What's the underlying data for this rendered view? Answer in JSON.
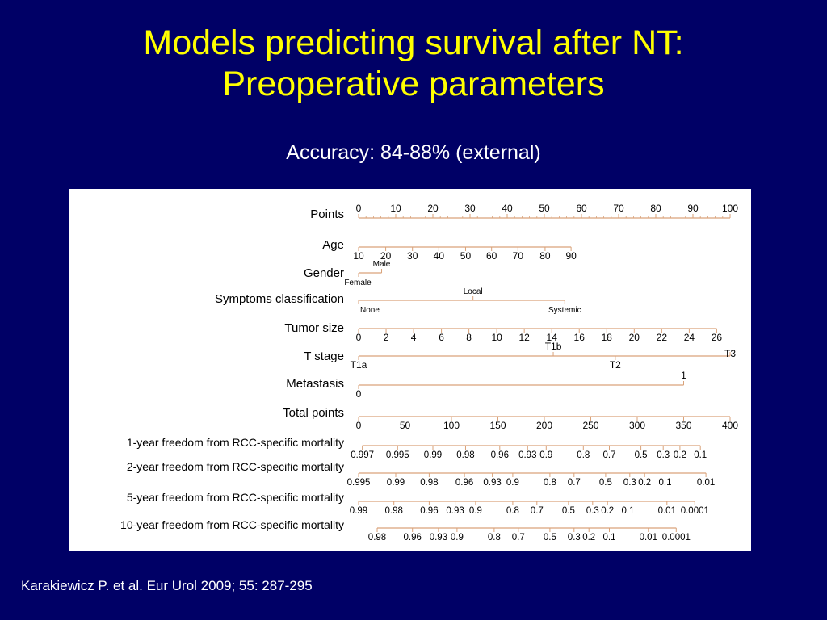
{
  "slide": {
    "title_line1": "Models predicting survival after NT:",
    "title_line2": "Preoperative parameters",
    "subtitle": "Accuracy: 84-88% (external)",
    "citation": "Karakiewicz P. et al. Eur Urol 2009; 55: 287-295"
  },
  "colors": {
    "background": "#000066",
    "title": "#ffff00",
    "text": "#ffffff",
    "panel": "#ffffff",
    "scale_line": "#d9a27a",
    "label": "#000000"
  },
  "nomogram": {
    "rows": [
      {
        "label": "Points",
        "ticks": [
          {
            "t": "0",
            "p": 0
          },
          {
            "t": "10",
            "p": 10
          },
          {
            "t": "20",
            "p": 20
          },
          {
            "t": "30",
            "p": 30
          },
          {
            "t": "40",
            "p": 40
          },
          {
            "t": "50",
            "p": 50
          },
          {
            "t": "60",
            "p": 60
          },
          {
            "t": "70",
            "p": 70
          },
          {
            "t": "80",
            "p": 80
          },
          {
            "t": "90",
            "p": 90
          },
          {
            "t": "100",
            "p": 100
          }
        ]
      },
      {
        "label": "Age",
        "ticks": [
          {
            "t": "10",
            "p": 0
          },
          {
            "t": "20",
            "p": 7.3
          },
          {
            "t": "30",
            "p": 14.5
          },
          {
            "t": "40",
            "p": 21.6
          },
          {
            "t": "50",
            "p": 28.8
          },
          {
            "t": "60",
            "p": 35.8
          },
          {
            "t": "70",
            "p": 42.9
          },
          {
            "t": "80",
            "p": 50.2
          },
          {
            "t": "90",
            "p": 57.2
          }
        ]
      },
      {
        "label": "Gender",
        "ticks": [
          {
            "t": "Female",
            "p": 0
          },
          {
            "t": "Male",
            "p": 6.2
          }
        ]
      },
      {
        "label": "Symptoms classification",
        "ticks": [
          {
            "t": "None",
            "p": 0
          },
          {
            "t": "Local",
            "p": 30.8
          },
          {
            "t": "Systemic",
            "p": 55.5
          }
        ]
      },
      {
        "label": "Tumor   size",
        "ticks": [
          {
            "t": "0",
            "p": 0
          },
          {
            "t": "2",
            "p": 7.4
          },
          {
            "t": "4",
            "p": 14.8
          },
          {
            "t": "6",
            "p": 22.3
          },
          {
            "t": "8",
            "p": 29.7
          },
          {
            "t": "10",
            "p": 37.2
          },
          {
            "t": "12",
            "p": 44.6
          },
          {
            "t": "14",
            "p": 52.0
          },
          {
            "t": "16",
            "p": 59.4
          },
          {
            "t": "18",
            "p": 66.8
          },
          {
            "t": "20",
            "p": 74.2
          },
          {
            "t": "22",
            "p": 81.6
          },
          {
            "t": "24",
            "p": 89.0
          },
          {
            "t": "26",
            "p": 96.4
          }
        ]
      },
      {
        "label": "T stage",
        "ticks": [
          {
            "t": "T1a",
            "p": 0
          },
          {
            "t": "T1b",
            "p": 52.4
          },
          {
            "t": "T2",
            "p": 69.1
          },
          {
            "t": "T3",
            "p": 100
          }
        ]
      },
      {
        "label": "Metastasis",
        "ticks": [
          {
            "t": "0",
            "p": 0
          },
          {
            "t": "1",
            "p": 87.5
          }
        ]
      },
      {
        "label": "Total points",
        "ticks": [
          {
            "t": "0",
            "p": 0
          },
          {
            "t": "50",
            "p": 12.5
          },
          {
            "t": "100",
            "p": 25
          },
          {
            "t": "150",
            "p": 37.5
          },
          {
            "t": "200",
            "p": 50
          },
          {
            "t": "250",
            "p": 62.5
          },
          {
            "t": "300",
            "p": 75
          },
          {
            "t": "350",
            "p": 87.5
          },
          {
            "t": "400",
            "p": 100
          }
        ]
      },
      {
        "label": "1-year freedom from RCC-specific mortality",
        "ticks": [
          {
            "t": "0.997",
            "p": 1
          },
          {
            "t": "0.995",
            "p": 10.5
          },
          {
            "t": "0.99",
            "p": 20
          },
          {
            "t": "0.98",
            "p": 28.8
          },
          {
            "t": "0.96",
            "p": 38
          },
          {
            "t": "0.93",
            "p": 45.5
          },
          {
            "t": "0.9",
            "p": 50.5
          },
          {
            "t": "0.8",
            "p": 60.5
          },
          {
            "t": "0.7",
            "p": 67.5
          },
          {
            "t": "0.5",
            "p": 76
          },
          {
            "t": "0.3",
            "p": 82
          },
          {
            "t": "0.2",
            "p": 86.5
          },
          {
            "t": "0.1",
            "p": 92
          }
        ]
      },
      {
        "label": "2-year freedom from RCC-specific mortality",
        "ticks": [
          {
            "t": "0.995",
            "p": 0
          },
          {
            "t": "0.99",
            "p": 10
          },
          {
            "t": "0.98",
            "p": 19
          },
          {
            "t": "0.96",
            "p": 28.5
          },
          {
            "t": "0.93",
            "p": 36
          },
          {
            "t": "0.9",
            "p": 41.5
          },
          {
            "t": "0.8",
            "p": 51.5
          },
          {
            "t": "0.7",
            "p": 58
          },
          {
            "t": "0.5",
            "p": 66.5
          },
          {
            "t": "0.3",
            "p": 73
          },
          {
            "t": "0.2",
            "p": 77
          },
          {
            "t": "0.1",
            "p": 82.5
          },
          {
            "t": "0.01",
            "p": 93.5
          }
        ]
      },
      {
        "label": "5-year freedom from RCC-specific mortality",
        "ticks": [
          {
            "t": "0.99",
            "p": 0
          },
          {
            "t": "0.98",
            "p": 9.5
          },
          {
            "t": "0.96",
            "p": 19
          },
          {
            "t": "0.93",
            "p": 26
          },
          {
            "t": "0.9",
            "p": 31.5
          },
          {
            "t": "0.8",
            "p": 41.5
          },
          {
            "t": "0.7",
            "p": 48
          },
          {
            "t": "0.5",
            "p": 56.5
          },
          {
            "t": "0.3",
            "p": 63
          },
          {
            "t": "0.2",
            "p": 67
          },
          {
            "t": "0.1",
            "p": 72.5
          },
          {
            "t": "0.01",
            "p": 83
          },
          {
            "t": "0.0001",
            "p": 90.5
          }
        ]
      },
      {
        "label": "10-year freedom from RCC-specific mortality",
        "ticks": [
          {
            "t": "0.98",
            "p": 5
          },
          {
            "t": "0.96",
            "p": 14.5
          },
          {
            "t": "0.93",
            "p": 21.5
          },
          {
            "t": "0.9",
            "p": 26.5
          },
          {
            "t": "0.8",
            "p": 36.5
          },
          {
            "t": "0.7",
            "p": 43
          },
          {
            "t": "0.5",
            "p": 51.5
          },
          {
            "t": "0.3",
            "p": 58
          },
          {
            "t": "0.2",
            "p": 62
          },
          {
            "t": "0.1",
            "p": 67.5
          },
          {
            "t": "0.01",
            "p": 78
          },
          {
            "t": "0.0001",
            "p": 85.5
          }
        ]
      }
    ]
  }
}
